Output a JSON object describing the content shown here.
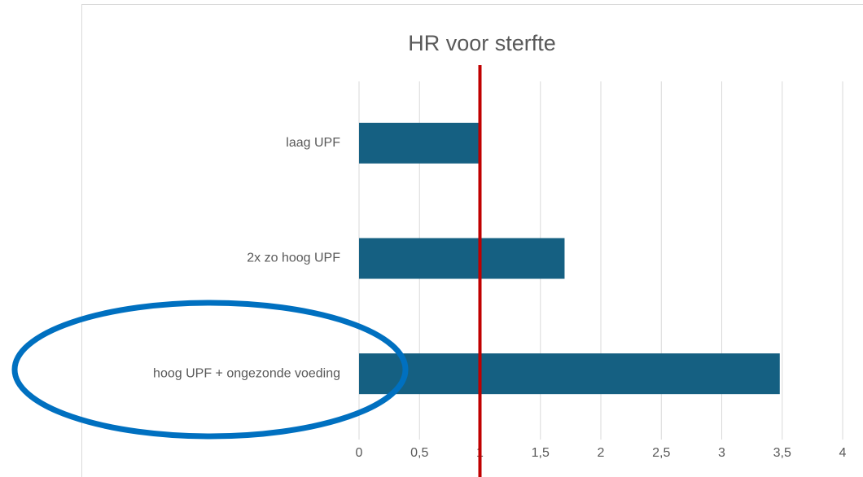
{
  "chart_data": {
    "type": "barh",
    "title": "HR voor sterfte",
    "categories": [
      "laag UPF",
      "2x zo hoog UPF",
      "hoog UPF + ongezonde voeding"
    ],
    "values": [
      1.0,
      1.7,
      3.48
    ],
    "color": "#156082",
    "xlim": [
      0,
      4
    ],
    "xticks": [
      0,
      {
        "value": 0.5,
        "label": "0,5"
      },
      1,
      {
        "value": 1.5,
        "label": "1,5"
      },
      2,
      {
        "value": 2.5,
        "label": "2,5"
      },
      3,
      {
        "value": 3.5,
        "label": "3,5"
      },
      4
    ],
    "grid": true,
    "reference_line": {
      "value": 1,
      "color": "#c00000"
    }
  }
}
